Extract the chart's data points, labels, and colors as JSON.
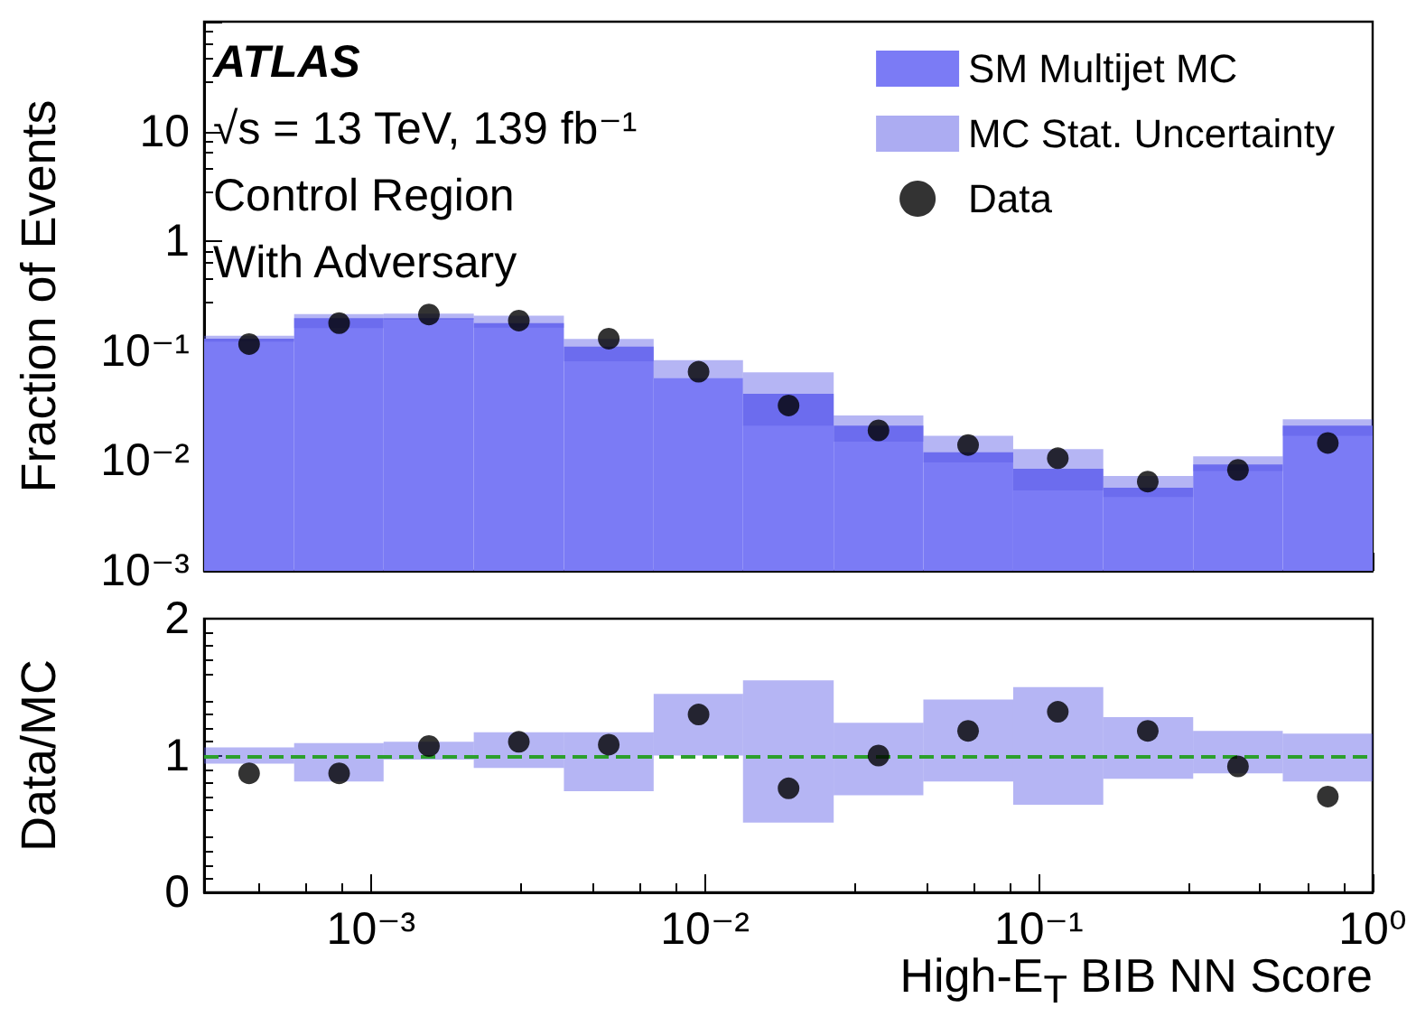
{
  "chart_data": [
    {
      "type": "histogram",
      "ylabel": "Fraction of Events",
      "log": "xy",
      "legend": "top right",
      "tick_labels": "y",
      "grid": false,
      "annotations": [
        "ATLAS",
        "√s = 13 TeV, 139 fb⁻¹",
        "Control Region",
        "With Adversary"
      ],
      "bins": [
        0.000316,
        0.000588,
        0.00109,
        0.00203,
        0.00378,
        0.00702,
        0.013,
        0.0243,
        0.0451,
        0.0838,
        0.156,
        0.29,
        0.538,
        1
      ],
      "xlim": [
        0.000316,
        1
      ],
      "xticks": [
        {
          "value": 0.001,
          "label": null
        },
        {
          "value": 0.01,
          "label": null
        },
        {
          "value": 0.1,
          "label": null
        },
        {
          "value": 1,
          "label": null
        }
      ],
      "ylim": [
        0.001,
        100
      ],
      "yticks": [
        {
          "value": 0.001,
          "label": "10⁻³"
        },
        {
          "value": 0.01,
          "label": "10⁻²"
        },
        {
          "value": 0.1,
          "label": "10⁻¹"
        },
        1,
        10,
        {
          "value": 100,
          "label": null
        }
      ],
      "series": [
        {
          "name": "SM Multijet MC",
          "type": "histogram",
          "color": "#7b7bf5",
          "values": [
            0.13,
            0.2,
            0.2,
            0.18,
            0.11,
            0.057,
            0.041,
            0.021,
            0.012,
            0.0085,
            0.0057,
            0.0093,
            0.021
          ]
        },
        {
          "name": "MC Stat. Uncertainty",
          "type": "histogram",
          "color": "#5a5ae6",
          "base": [
            0.122,
            0.162,
            0.194,
            0.164,
            0.081,
            0.057,
            0.021,
            0.015,
            0.0097,
            0.0054,
            0.0047,
            0.0081,
            0.017
          ],
          "values": [
            0.016,
            0.056,
            0.026,
            0.046,
            0.048,
            0.026,
            0.043,
            0.011,
            0.0073,
            0.0074,
            0.0026,
            0.0029,
            0.007
          ]
        },
        {
          "name": "Data",
          "type": "scatter",
          "color": "#000000",
          "x": [
            0.000431,
            0.000802,
            0.00149,
            0.00277,
            0.00515,
            0.00957,
            0.0178,
            0.0331,
            0.0614,
            0.114,
            0.212,
            0.395,
            0.734
          ],
          "values": [
            0.116,
            0.18,
            0.216,
            0.19,
            0.13,
            0.065,
            0.032,
            0.019,
            0.014,
            0.0106,
            0.0065,
            0.0083,
            0.0146
          ]
        }
      ]
    },
    {
      "type": "histogram",
      "ylabel": "Data/MC",
      "xlabel": "High-E$_{T}$ BIB NN Score",
      "log": "x",
      "grid": false,
      "bins": [
        0.000316,
        0.000588,
        0.00109,
        0.00203,
        0.00378,
        0.00702,
        0.013,
        0.0243,
        0.0451,
        0.0838,
        0.156,
        0.29,
        0.538,
        1
      ],
      "xlim": [
        0.000316,
        1
      ],
      "xticks": [
        {
          "value": 0.001,
          "label": "10⁻³"
        },
        {
          "value": 0.01,
          "label": "10⁻²"
        },
        {
          "value": 0.1,
          "label": "10⁻¹"
        },
        {
          "value": 1,
          "label": "10⁰"
        }
      ],
      "ylim": [
        0,
        2
      ],
      "yticks": [
        0,
        1,
        2
      ],
      "ref_lines": [
        {
          "axis": "y",
          "value": 1,
          "color": "#2ca02c",
          "line_style": "dashed"
        }
      ],
      "series": [
        {
          "type": "histogram",
          "color": "#5a5ae6",
          "base": [
            0.94,
            0.81,
            0.97,
            0.91,
            0.74,
            1.0,
            0.51,
            0.71,
            0.81,
            0.64,
            0.83,
            0.87,
            0.81
          ],
          "values": [
            0.12,
            0.28,
            0.13,
            0.26,
            0.43,
            0.45,
            1.04,
            0.53,
            0.6,
            0.86,
            0.45,
            0.31,
            0.35
          ]
        },
        {
          "type": "scatter",
          "color": "#000000",
          "x": [
            0.000431,
            0.000802,
            0.00149,
            0.00277,
            0.00515,
            0.00957,
            0.0178,
            0.0331,
            0.0614,
            0.114,
            0.212,
            0.395,
            0.734
          ],
          "values": [
            0.87,
            0.87,
            1.07,
            1.1,
            1.08,
            1.3,
            0.76,
            1.0,
            1.18,
            1.32,
            1.18,
            0.92,
            0.7
          ]
        }
      ]
    }
  ]
}
